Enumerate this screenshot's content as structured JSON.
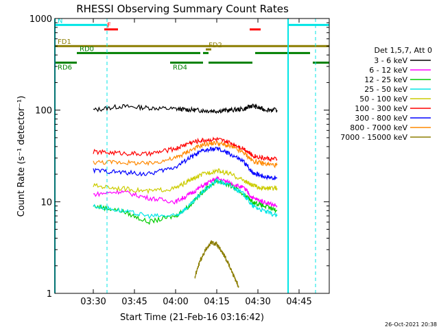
{
  "chart_data": {
    "type": "line",
    "title": "RHESSI Observing Summary Count Rates",
    "xlabel": "Start Time (21-Feb-16 03:16:42)",
    "ylabel": "Count Rate (s⁻¹ detector⁻¹)",
    "timestamp": "26-Oct-2021 20:38",
    "yscale": "log",
    "ylim": [
      1,
      1000
    ],
    "xlim": [
      "03:16",
      "04:56"
    ],
    "x_ticks": [
      "03:30",
      "03:45",
      "04:00",
      "04:15",
      "04:30",
      "04:45"
    ],
    "y_ticks": [
      "1",
      "10",
      "100",
      "1000"
    ],
    "legend_title": "Det 1,5,7, Att 0",
    "legend_position": "right",
    "series": [
      {
        "name": "3 - 6 keV",
        "color": "#000000",
        "x": [
          "03:30",
          "03:40",
          "03:50",
          "04:00",
          "04:05",
          "04:10",
          "04:15",
          "04:20",
          "04:25",
          "04:28",
          "04:32",
          "04:37"
        ],
        "values": [
          100,
          110,
          106,
          103,
          101,
          99,
          98,
          100,
          103,
          112,
          102,
          100
        ]
      },
      {
        "name": "6 - 12 keV",
        "color": "#ff00ff",
        "x": [
          "03:30",
          "03:40",
          "03:50",
          "04:00",
          "04:05",
          "04:10",
          "04:15",
          "04:20",
          "04:25",
          "04:28",
          "04:32",
          "04:37"
        ],
        "values": [
          12,
          13,
          11,
          10,
          12,
          15,
          18,
          16,
          14,
          11,
          10,
          9
        ]
      },
      {
        "name": "12 - 25 keV",
        "color": "#00cc00",
        "x": [
          "03:30",
          "03:40",
          "03:50",
          "04:00",
          "04:05",
          "04:10",
          "04:15",
          "04:20",
          "04:25",
          "04:28",
          "04:32",
          "04:37"
        ],
        "values": [
          9,
          8,
          6,
          7,
          9,
          13,
          17,
          15,
          12,
          10,
          9,
          8
        ]
      },
      {
        "name": "25 - 50 keV",
        "color": "#00e5e5",
        "x": [
          "03:30",
          "03:40",
          "03:50",
          "04:00",
          "04:05",
          "04:10",
          "04:15",
          "04:20",
          "04:25",
          "04:28",
          "04:32",
          "04:37"
        ],
        "values": [
          9,
          8,
          7,
          7,
          9,
          13,
          17,
          15,
          12,
          9,
          8,
          7
        ]
      },
      {
        "name": "50 - 100 keV",
        "color": "#cccc00",
        "x": [
          "03:30",
          "03:40",
          "03:50",
          "04:00",
          "04:05",
          "04:10",
          "04:15",
          "04:20",
          "04:25",
          "04:28",
          "04:32",
          "04:37"
        ],
        "values": [
          15,
          14,
          13,
          14,
          17,
          20,
          22,
          20,
          17,
          15,
          14,
          14
        ]
      },
      {
        "name": "100 - 300 keV",
        "color": "#ff0000",
        "x": [
          "03:30",
          "03:40",
          "03:50",
          "04:00",
          "04:05",
          "04:10",
          "04:15",
          "04:20",
          "04:25",
          "04:28",
          "04:32",
          "04:37"
        ],
        "values": [
          35,
          34,
          33,
          38,
          44,
          47,
          48,
          44,
          38,
          32,
          30,
          29
        ]
      },
      {
        "name": "300 - 800 keV",
        "color": "#0000ff",
        "x": [
          "03:30",
          "03:40",
          "03:50",
          "04:00",
          "04:05",
          "04:10",
          "04:15",
          "04:20",
          "04:25",
          "04:28",
          "04:32",
          "04:37"
        ],
        "values": [
          22,
          21,
          20,
          24,
          30,
          36,
          38,
          33,
          27,
          21,
          19,
          18
        ]
      },
      {
        "name": "800 - 7000 keV",
        "color": "#ff8800",
        "x": [
          "03:30",
          "03:40",
          "03:50",
          "04:00",
          "04:05",
          "04:10",
          "04:15",
          "04:20",
          "04:25",
          "04:28",
          "04:32",
          "04:37"
        ],
        "values": [
          27,
          27,
          26,
          30,
          36,
          42,
          44,
          40,
          34,
          28,
          26,
          25
        ]
      },
      {
        "name": "7000 - 15000 keV",
        "color": "#8b7d00",
        "x": [
          "04:07",
          "04:09",
          "04:11",
          "04:13",
          "04:15",
          "04:17",
          "04:19",
          "04:21",
          "04:23"
        ],
        "values": [
          1.5,
          2.3,
          3.0,
          3.6,
          3.4,
          2.8,
          2.2,
          1.6,
          1.2
        ]
      }
    ],
    "flags": [
      {
        "label": "N",
        "color": "#00e5e5",
        "start": "03:16",
        "end": "03:35",
        "level": 850
      },
      {
        "label": "",
        "color": "#00e5e5",
        "start": "04:41",
        "end": "04:56",
        "level": 850
      },
      {
        "label": "F",
        "color": "#ff0000",
        "start": "03:34",
        "end": "03:39",
        "level": 760
      },
      {
        "label": "",
        "color": "#ff0000",
        "start": "04:27",
        "end": "04:31",
        "level": 760
      },
      {
        "label": "FD1",
        "color": "#8b7d00",
        "start": "03:16",
        "end": "04:56",
        "level": 500
      },
      {
        "label": "FD2",
        "color": "#8b7d00",
        "start": "04:11",
        "end": "04:13",
        "level": 460
      },
      {
        "label": "RD0",
        "color": "#008000",
        "start": "03:24",
        "end": "04:09",
        "level": 420
      },
      {
        "label": "",
        "color": "#008000",
        "start": "04:10",
        "end": "04:12",
        "level": 420
      },
      {
        "label": "",
        "color": "#008000",
        "start": "04:29",
        "end": "04:49",
        "level": 420
      },
      {
        "label": "RD6",
        "color": "#008000",
        "start": "03:16",
        "end": "03:24",
        "level": 330
      },
      {
        "label": "RD4",
        "color": "#008000",
        "start": "03:58",
        "end": "04:10",
        "level": 330
      },
      {
        "label": "",
        "color": "#008000",
        "start": "04:12",
        "end": "04:28",
        "level": 330
      },
      {
        "label": "",
        "color": "#008000",
        "start": "04:50",
        "end": "04:56",
        "level": 330
      }
    ],
    "vlines": [
      {
        "time": "03:16",
        "color": "#00e5e5",
        "style": "solid"
      },
      {
        "time": "03:35",
        "color": "#00e5e5",
        "style": "dashed"
      },
      {
        "time": "04:41",
        "color": "#00e5e5",
        "style": "solid"
      },
      {
        "time": "04:51",
        "color": "#00e5e5",
        "style": "dashed"
      }
    ]
  }
}
